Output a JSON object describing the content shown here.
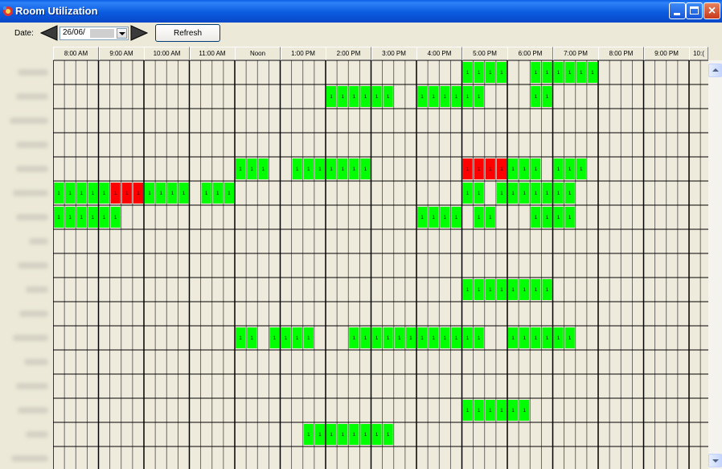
{
  "window": {
    "title": "Room Utilization"
  },
  "toolbar": {
    "date_label": "Date:",
    "date_value": "26/06/",
    "refresh_label": "Refresh"
  },
  "time_headers": [
    "8:00 AM",
    "9:00 AM",
    "10:00 AM",
    "11:00 AM",
    "Noon",
    "1:00 PM",
    "2:00 PM",
    "3:00 PM",
    "4:00 PM",
    "5:00 PM",
    "6:00 PM",
    "7:00 PM",
    "8:00 PM",
    "9:00 PM",
    "10:("
  ],
  "slot_marker": "1",
  "grid": {
    "slots_per_hour": 4,
    "rows": [
      {
        "green": [
          [
            36,
            40
          ],
          [
            42,
            48
          ]
        ],
        "red": []
      },
      {
        "green": [
          [
            24,
            30
          ],
          [
            32,
            38
          ],
          [
            42,
            44
          ]
        ],
        "red": []
      },
      {
        "green": [],
        "red": []
      },
      {
        "green": [],
        "red": []
      },
      {
        "green": [
          [
            16,
            19
          ],
          [
            21,
            28
          ],
          [
            40,
            43
          ],
          [
            44,
            47
          ]
        ],
        "red": [
          [
            36,
            40
          ]
        ]
      },
      {
        "green": [
          [
            0,
            5
          ],
          [
            8,
            12
          ],
          [
            13,
            16
          ],
          [
            36,
            38
          ],
          [
            39,
            46
          ]
        ],
        "red": [
          [
            5,
            8
          ]
        ]
      },
      {
        "green": [
          [
            0,
            6
          ],
          [
            32,
            36
          ],
          [
            37,
            39
          ],
          [
            42,
            46
          ]
        ],
        "red": []
      },
      {
        "green": [],
        "red": []
      },
      {
        "green": [],
        "red": []
      },
      {
        "green": [
          [
            36,
            44
          ]
        ],
        "red": []
      },
      {
        "green": [],
        "red": []
      },
      {
        "green": [
          [
            16,
            18
          ],
          [
            19,
            23
          ],
          [
            26,
            38
          ],
          [
            40,
            46
          ]
        ],
        "red": []
      },
      {
        "green": [],
        "red": []
      },
      {
        "green": [],
        "red": []
      },
      {
        "green": [
          [
            36,
            42
          ]
        ],
        "red": []
      },
      {
        "green": [
          [
            22,
            30
          ]
        ],
        "red": []
      },
      {
        "green": [],
        "red": []
      }
    ]
  },
  "colors": {
    "free": "#EFEBDC",
    "booked": "#00FF00",
    "conflict": "#FF0000",
    "hour_line": "#000000",
    "slot_line": "#4A4A4A"
  },
  "icons": {
    "app": "room-utilization-app-icon",
    "prev": "left-arrow-icon",
    "next": "right-arrow-icon"
  }
}
